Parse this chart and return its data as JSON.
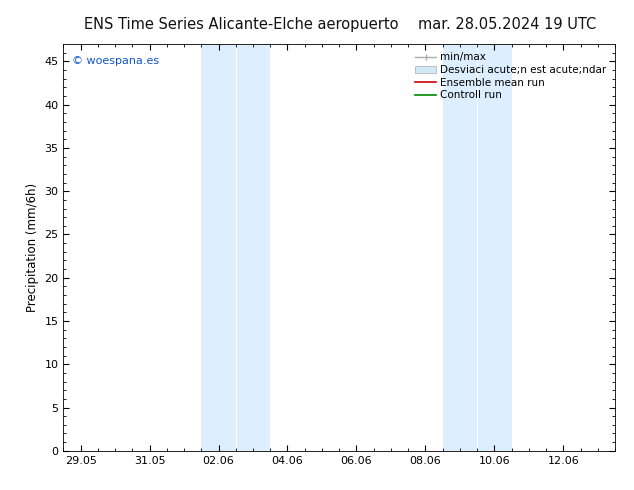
{
  "title_left": "ENS Time Series Alicante-Elche aeropuerto",
  "title_right": "mar. 28.05.2024 19 UTC",
  "ylabel": "Precipitation (mm/6h)",
  "ylim": [
    0,
    47
  ],
  "yticks": [
    0,
    5,
    10,
    15,
    20,
    25,
    30,
    35,
    40,
    45
  ],
  "background_color": "#ffffff",
  "plot_bg_color": "#ffffff",
  "watermark": "© woespana.es",
  "legend_items": [
    {
      "label": "min/max",
      "color": "#aaaaaa",
      "lw": 1.0,
      "style": "line"
    },
    {
      "label": "Desviaci acute;n est acute;ndar",
      "color": "#d0e8f8",
      "style": "band"
    },
    {
      "label": "Ensemble mean run",
      "color": "#cc0000",
      "lw": 1.0,
      "style": "line"
    },
    {
      "label": "Controll run",
      "color": "#008800",
      "lw": 1.0,
      "style": "line"
    }
  ],
  "shaded_bands": [
    {
      "xmin": 3.5,
      "xmax": 4.5,
      "color": "#ddeeff",
      "alpha": 1.0
    },
    {
      "xmin": 4.5,
      "xmax": 5.5,
      "color": "#ddeeff",
      "alpha": 1.0
    },
    {
      "xmin": 10.5,
      "xmax": 11.5,
      "color": "#ddeeff",
      "alpha": 1.0
    },
    {
      "xmin": 11.5,
      "xmax": 12.5,
      "color": "#ddeeff",
      "alpha": 1.0
    }
  ],
  "xtick_positions": [
    0,
    2,
    4,
    6,
    8,
    10,
    12,
    14
  ],
  "xtick_labels": [
    "29.05",
    "31.05",
    "02.06",
    "04.06",
    "06.06",
    "08.06",
    "10.06",
    "12.06"
  ],
  "xlim": [
    -0.5,
    15.5
  ],
  "title_fontsize": 10.5,
  "axis_fontsize": 8.5,
  "tick_fontsize": 8,
  "legend_fontsize": 7.5
}
